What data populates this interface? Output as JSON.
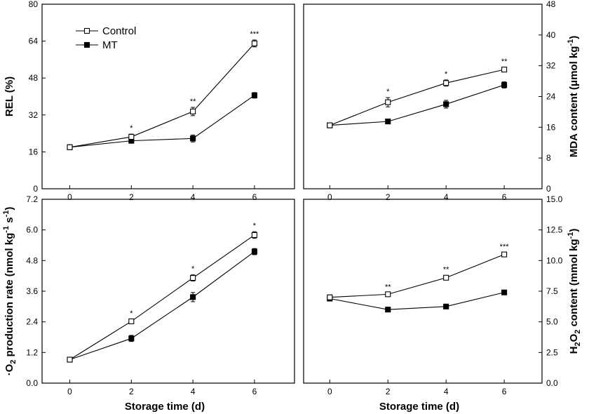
{
  "chart_data": [
    {
      "type": "line",
      "panel": "top-left",
      "x": [
        0,
        2,
        4,
        6
      ],
      "xlim": [
        -0.9,
        7.3
      ],
      "xticks": [
        0,
        2,
        4,
        6
      ],
      "ylim": [
        0,
        80
      ],
      "yticks": [
        0,
        16,
        32,
        48,
        64,
        80
      ],
      "ylabel": "REL (%)",
      "xlabel": "",
      "y_side": "left",
      "legend": {
        "placement": "top-left",
        "entries": [
          "Control",
          "MT"
        ]
      },
      "series": [
        {
          "name": "Control",
          "marker": "open-square",
          "values": [
            18.0,
            22.5,
            33.5,
            63.0
          ],
          "errors": [
            0.6,
            1.2,
            1.8,
            1.5
          ]
        },
        {
          "name": "MT",
          "marker": "filled-square",
          "values": [
            18.0,
            20.8,
            21.8,
            40.5
          ],
          "errors": [
            0.6,
            0.8,
            1.5,
            1.2
          ]
        }
      ],
      "annotations": [
        "",
        "*",
        "**",
        "***"
      ]
    },
    {
      "type": "line",
      "panel": "top-right",
      "x": [
        0,
        2,
        4,
        6
      ],
      "xlim": [
        -0.9,
        7.3
      ],
      "xticks": [
        0,
        2,
        4,
        6
      ],
      "ylim": [
        0,
        48
      ],
      "yticks": [
        0,
        8,
        16,
        24,
        32,
        40,
        48
      ],
      "ylabel": "MDA content (μmol kg-1)",
      "xlabel": "",
      "y_side": "right",
      "series": [
        {
          "name": "Control",
          "marker": "open-square",
          "values": [
            16.5,
            22.5,
            27.5,
            31.0
          ],
          "errors": [
            0.4,
            1.2,
            0.8,
            0.6
          ]
        },
        {
          "name": "MT",
          "marker": "filled-square",
          "values": [
            16.5,
            17.5,
            22.0,
            27.0
          ],
          "errors": [
            0.4,
            0.5,
            1.0,
            0.8
          ]
        }
      ],
      "annotations": [
        "",
        "*",
        "*",
        "**"
      ]
    },
    {
      "type": "line",
      "panel": "bottom-left",
      "x": [
        0,
        2,
        4,
        6
      ],
      "xlim": [
        -0.9,
        7.3
      ],
      "xticks": [
        0,
        2,
        4,
        6
      ],
      "ylim": [
        0,
        7.2
      ],
      "yticks": [
        0.0,
        1.2,
        2.4,
        3.6,
        4.8,
        6.0,
        7.2
      ],
      "ylabel": "·O2 production rate (nmol kg-1 s-1)",
      "xlabel": "Storage time (d)",
      "y_side": "left",
      "series": [
        {
          "name": "Control",
          "marker": "open-square",
          "values": [
            0.92,
            2.42,
            4.12,
            5.8
          ],
          "errors": [
            0.04,
            0.08,
            0.12,
            0.13
          ]
        },
        {
          "name": "MT",
          "marker": "filled-square",
          "values": [
            0.92,
            1.75,
            3.37,
            5.15
          ],
          "errors": [
            0.04,
            0.12,
            0.18,
            0.12
          ]
        }
      ],
      "annotations": [
        "",
        "*",
        "*",
        "*"
      ]
    },
    {
      "type": "line",
      "panel": "bottom-right",
      "x": [
        0,
        2,
        4,
        6
      ],
      "xlim": [
        -0.9,
        7.3
      ],
      "xticks": [
        0,
        2,
        4,
        6
      ],
      "ylim": [
        0,
        15
      ],
      "yticks": [
        0.0,
        2.5,
        5.0,
        7.5,
        10.0,
        12.5,
        15.0
      ],
      "ylabel": "H2O2 content (mmol kg-1)",
      "xlabel": "Storage time (d)",
      "y_side": "right",
      "series": [
        {
          "name": "Control",
          "marker": "open-square",
          "values": [
            7.0,
            7.25,
            8.6,
            10.5
          ],
          "errors": [
            0.2,
            0.12,
            0.18,
            0.15
          ]
        },
        {
          "name": "MT",
          "marker": "filled-square",
          "values": [
            6.9,
            6.0,
            6.25,
            7.4
          ],
          "errors": [
            0.2,
            0.1,
            0.1,
            0.1
          ]
        }
      ],
      "annotations": [
        "",
        "**",
        "**",
        "***"
      ]
    }
  ],
  "colors": {
    "ink": "#000000",
    "background": "#ffffff"
  }
}
